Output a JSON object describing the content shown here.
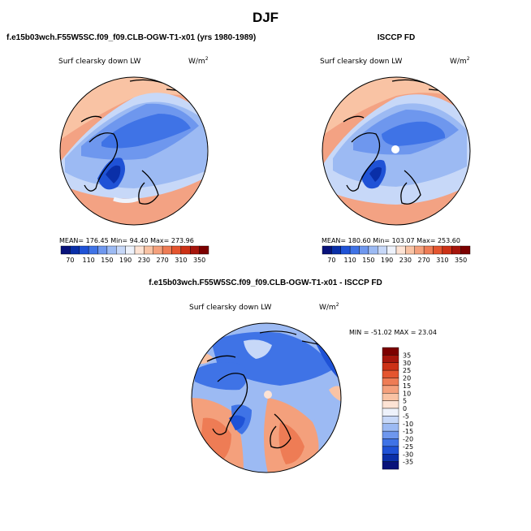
{
  "main_title": "DJF",
  "chart_data": [
    {
      "type": "heatmap",
      "title": "f.e15b03wch.F55W5SC.f09_f09.CLB-OGW-T1-x01 (yrs 1980-1989)",
      "field": "Surf clearsky down LW",
      "units": "W/m",
      "units_exp": "2",
      "stats_text": "MEAN= 176.45   Min=   94.40   Max= 273.96",
      "stats": {
        "mean": 176.45,
        "min": 94.4,
        "max": 273.96
      },
      "colorbar_ticks": [
        "70",
        "110",
        "150",
        "190",
        "230",
        "270",
        "310",
        "350"
      ],
      "colorbar_colors": [
        "#08127a",
        "#0a2fa8",
        "#1f52d6",
        "#3f73e6",
        "#6e97ee",
        "#9cbaf3",
        "#c7d8f8",
        "#eef2fb",
        "#fde3d4",
        "#f9c3a4",
        "#f4a07c",
        "#ee7c55",
        "#e4552f",
        "#cc3116",
        "#a6150c",
        "#7c0000"
      ]
    },
    {
      "type": "heatmap",
      "title": "ISCCP FD",
      "field": "Surf clearsky down LW",
      "units": "W/m",
      "units_exp": "2",
      "stats_text": "MEAN= 180.60   Min= 103.07   Max= 253.60",
      "stats": {
        "mean": 180.6,
        "min": 103.07,
        "max": 253.6
      },
      "colorbar_ticks": [
        "70",
        "110",
        "150",
        "190",
        "230",
        "270",
        "310",
        "350"
      ],
      "colorbar_colors": [
        "#08127a",
        "#0a2fa8",
        "#1f52d6",
        "#3f73e6",
        "#6e97ee",
        "#9cbaf3",
        "#c7d8f8",
        "#eef2fb",
        "#fde3d4",
        "#f9c3a4",
        "#f4a07c",
        "#ee7c55",
        "#e4552f",
        "#cc3116",
        "#a6150c",
        "#7c0000"
      ]
    },
    {
      "type": "heatmap",
      "title": "f.e15b03wch.F55W5SC.f09_f09.CLB-OGW-T1-x01 - ISCCP FD",
      "field": "Surf clearsky down LW",
      "units": "W/m",
      "units_exp": "2",
      "stats_text": "MIN = -51.02  MAX =  23.04",
      "stats": {
        "min": -51.02,
        "max": 23.04
      },
      "colorbar_ticks": [
        "35",
        "30",
        "25",
        "20",
        "15",
        "10",
        "5",
        "0",
        "-5",
        "-10",
        "-15",
        "-20",
        "-25",
        "-30",
        "-35"
      ],
      "colorbar_colors": [
        "#7c0000",
        "#a6150c",
        "#cc3116",
        "#e4552f",
        "#ee7c55",
        "#f4a07c",
        "#f9c3a4",
        "#fde3d4",
        "#eef2fb",
        "#c7d8f8",
        "#9cbaf3",
        "#6e97ee",
        "#3f73e6",
        "#1f52d6",
        "#0a2fa8",
        "#08127a"
      ]
    }
  ]
}
